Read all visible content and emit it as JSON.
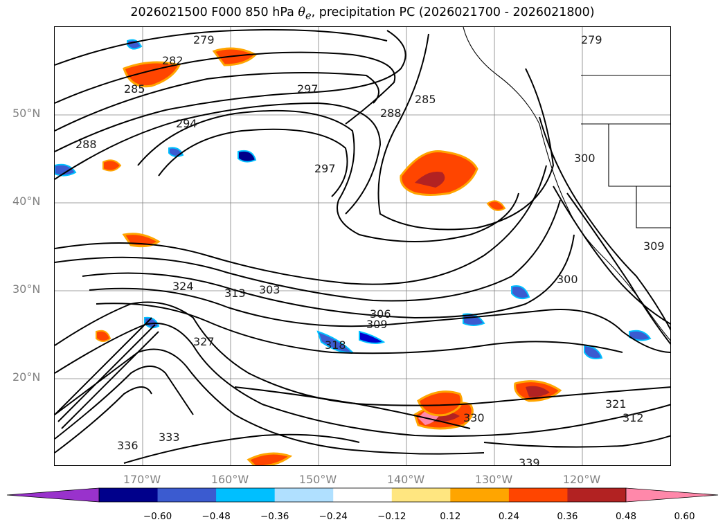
{
  "title": {
    "prefix": "2026021500 F000 850 hPa ",
    "symbol": "θ",
    "subscript": "e",
    "suffix": ", precipitation PC (2026021700 - 2026021800)"
  },
  "map": {
    "lat_labels": [
      "50°N",
      "40°N",
      "30°N",
      "20°N"
    ],
    "lon_labels": [
      "170°W",
      "160°W",
      "150°W",
      "140°W",
      "130°W",
      "120°W"
    ],
    "contour_labels": [
      "279",
      "282",
      "285",
      "288",
      "294",
      "297",
      "297",
      "285",
      "288",
      "300",
      "303",
      "306",
      "309",
      "313",
      "318",
      "321",
      "324",
      "327",
      "330",
      "333",
      "336",
      "339",
      "300",
      "309",
      "279",
      "312"
    ],
    "colors": {
      "contour": "#000000",
      "grid": "#808080",
      "coast": "#000000"
    }
  },
  "colorbar": {
    "ticks": [
      "−0.60",
      "−0.48",
      "−0.36",
      "−0.24",
      "−0.12",
      "0.12",
      "0.24",
      "0.36",
      "0.48",
      "0.60"
    ],
    "colors": [
      "#9932cc",
      "#00008b",
      "#3b5bd0",
      "#00bfff",
      "#b0e0ff",
      "#ffffff",
      "#ffe680",
      "#ffa500",
      "#ff4500",
      "#b22222",
      "#ff88aa"
    ]
  }
}
